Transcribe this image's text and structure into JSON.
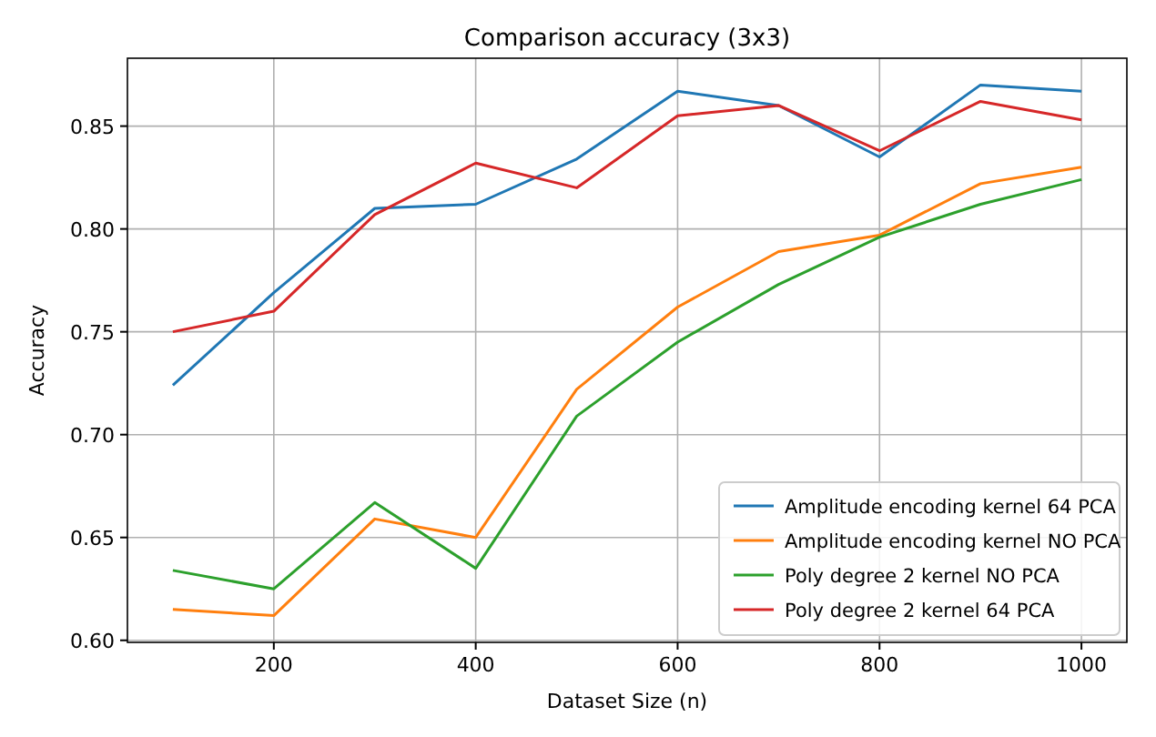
{
  "chart_data": {
    "type": "line",
    "title": "Comparison accuracy (3x3)",
    "xlabel": "Dataset Size (n)",
    "ylabel": "Accuracy",
    "x": [
      100,
      200,
      300,
      400,
      500,
      600,
      700,
      800,
      900,
      1000
    ],
    "series": [
      {
        "name": "Amplitude encoding kernel 64 PCA",
        "color": "#1f77b4",
        "values": [
          0.724,
          0.769,
          0.81,
          0.812,
          0.834,
          0.867,
          0.86,
          0.835,
          0.87,
          0.867
        ]
      },
      {
        "name": "Amplitude encoding kernel NO PCA",
        "color": "#ff7f0e",
        "values": [
          0.615,
          0.612,
          0.659,
          0.65,
          0.722,
          0.762,
          0.789,
          0.797,
          0.822,
          0.83
        ]
      },
      {
        "name": "Poly degree 2 kernel NO PCA",
        "color": "#2ca02c",
        "values": [
          0.634,
          0.625,
          0.667,
          0.635,
          0.709,
          0.745,
          0.773,
          0.796,
          0.812,
          0.824
        ]
      },
      {
        "name": "Poly degree 2 kernel 64 PCA",
        "color": "#d62728",
        "values": [
          0.75,
          0.76,
          0.807,
          0.832,
          0.82,
          0.855,
          0.86,
          0.838,
          0.862,
          0.853
        ]
      }
    ],
    "xlim": [
      55,
      1045
    ],
    "ylim": [
      0.599,
      0.883
    ],
    "xticks": [
      200,
      400,
      600,
      800,
      1000
    ],
    "yticks": [
      {
        "value": 0.6,
        "label": "0.60"
      },
      {
        "value": 0.65,
        "label": "0.65"
      },
      {
        "value": 0.7,
        "label": "0.70"
      },
      {
        "value": 0.75,
        "label": "0.75"
      },
      {
        "value": 0.8,
        "label": "0.80"
      },
      {
        "value": 0.85,
        "label": "0.85"
      }
    ],
    "grid": true,
    "legend": "bottom right",
    "marker": "none",
    "line_style": "solid"
  }
}
